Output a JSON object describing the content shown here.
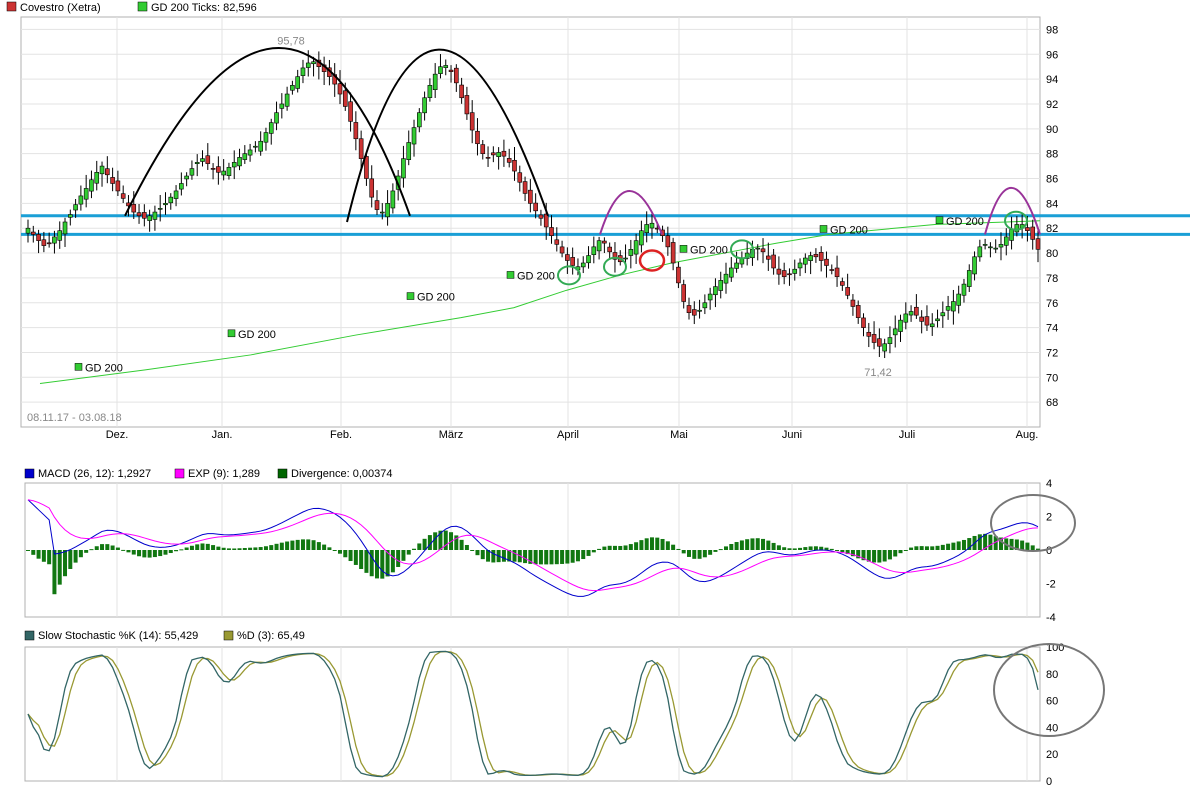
{
  "chart_data": [
    {
      "type": "candlestick",
      "legend": [
        {
          "label": "Covestro (Xetra)",
          "color": "#cc3333"
        },
        {
          "label": "GD 200 Ticks: 82,596",
          "color": "#33cc33"
        }
      ],
      "date_range": "08.11.17 - 03.08.18",
      "x_tick_labels": [
        "Dez.",
        "Jan.",
        "Feb.",
        "März",
        "April",
        "Mai",
        "Juni",
        "Juli",
        "Aug."
      ],
      "y_tick_labels": [
        "68",
        "70",
        "72",
        "74",
        "76",
        "78",
        "80",
        "82",
        "84",
        "86",
        "88",
        "90",
        "92",
        "94",
        "96",
        "98"
      ],
      "ylim": [
        66,
        99
      ],
      "max_label": "95,78",
      "min_label": "71,42",
      "gd200_labels": [
        {
          "text": "GD 200",
          "value": 70.8
        },
        {
          "text": "GD 200",
          "value": 73.5
        },
        {
          "text": "GD 200",
          "value": 76.5
        },
        {
          "text": "GD 200",
          "value": 78.2
        },
        {
          "text": "GD 200",
          "value": 80.3
        },
        {
          "text": "GD 200",
          "value": 81.9
        },
        {
          "text": "GD 200",
          "value": 82.6
        }
      ],
      "support_resistance_lines": [
        83.0,
        81.5
      ],
      "gd200_line": [
        [
          0,
          69.5
        ],
        [
          40,
          70.6
        ],
        [
          80,
          71.8
        ],
        [
          120,
          73.4
        ],
        [
          160,
          74.8
        ],
        [
          180,
          75.6
        ],
        [
          200,
          77.0
        ],
        [
          220,
          78.2
        ],
        [
          240,
          79.2
        ],
        [
          260,
          80.0
        ],
        [
          280,
          80.8
        ],
        [
          300,
          81.5
        ],
        [
          340,
          82.3
        ],
        [
          380,
          82.6
        ]
      ],
      "close": [
        82.0,
        81.5,
        81.0,
        80.6,
        80.8,
        81.3,
        81.8,
        82.5,
        83.1,
        83.9,
        84.6,
        85.2,
        85.9,
        86.5,
        87.0,
        86.3,
        85.6,
        85.0,
        84.4,
        83.8,
        83.3,
        83.0,
        82.8,
        83.0,
        83.3,
        83.6,
        84.0,
        84.5,
        85.0,
        85.6,
        86.2,
        86.8,
        87.3,
        87.6,
        87.2,
        86.8,
        86.5,
        86.6,
        86.9,
        87.3,
        87.7,
        88.0,
        88.3,
        88.6,
        89.0,
        89.7,
        90.5,
        91.3,
        92.0,
        92.8,
        93.5,
        94.2,
        94.9,
        95.3,
        95.4,
        95.0,
        94.6,
        94.2,
        93.6,
        92.8,
        91.8,
        90.6,
        89.2,
        87.6,
        86.0,
        84.5,
        83.5,
        83.3,
        84.0,
        85.0,
        86.2,
        87.6,
        88.9,
        90.1,
        91.3,
        92.5,
        93.5,
        94.4,
        95.0,
        95.1,
        94.6,
        93.7,
        92.5,
        91.2,
        89.9,
        88.8,
        88.0,
        87.7,
        87.9,
        88.1,
        87.8,
        87.3,
        86.6,
        85.7,
        84.8,
        84.0,
        83.4,
        82.8,
        82.1,
        81.4,
        80.7,
        80.0,
        79.4,
        79.0,
        78.9,
        79.2,
        79.8,
        80.5,
        81.0,
        80.8,
        80.1,
        79.5,
        79.3,
        79.6,
        80.3,
        81.0,
        81.8,
        82.3,
        82.4,
        82.0,
        81.4,
        80.5,
        79.2,
        77.6,
        76.1,
        75.2,
        75.0,
        75.4,
        76.0,
        76.7,
        77.3,
        77.8,
        78.3,
        78.8,
        79.2,
        79.6,
        80.0,
        80.3,
        80.4,
        80.1,
        79.5,
        78.8,
        78.3,
        78.1,
        78.3,
        78.7,
        79.2,
        79.6,
        79.8,
        79.7,
        79.4,
        79.0,
        78.6,
        78.1,
        77.4,
        76.6,
        75.7,
        74.8,
        74.0,
        73.3,
        72.8,
        72.5,
        72.7,
        73.2,
        73.9,
        74.6,
        75.1,
        75.3,
        75.0,
        74.5,
        74.2,
        74.3,
        74.7,
        75.2,
        75.7,
        76.1,
        76.7,
        77.5,
        78.6,
        79.7,
        80.5,
        80.7,
        80.5,
        80.4,
        80.7,
        81.3,
        81.9,
        82.3,
        82.3,
        81.8,
        81.1,
        80.3
      ],
      "macd": {
        "legend": [
          {
            "label": "MACD (26, 12): 1,2927",
            "color": "#0000cc"
          },
          {
            "label": "EXP (9): 1,289",
            "color": "#ff00ff"
          },
          {
            "label": "Divergence: 0,00374",
            "color": "#006600"
          }
        ],
        "y_tick_labels": [
          "4",
          "2",
          "0",
          "-2",
          "-4"
        ],
        "ylim": [
          -4,
          4
        ]
      },
      "stochastic": {
        "legend": [
          {
            "label": "Slow Stochastic %K (14): 55,429",
            "color": "#336666"
          },
          {
            "label": "%D (3): 65,49",
            "color": "#999933"
          }
        ],
        "y_tick_labels": [
          "100",
          "80",
          "60",
          "40",
          "20",
          "0"
        ],
        "ylim": [
          0,
          100
        ]
      }
    }
  ]
}
